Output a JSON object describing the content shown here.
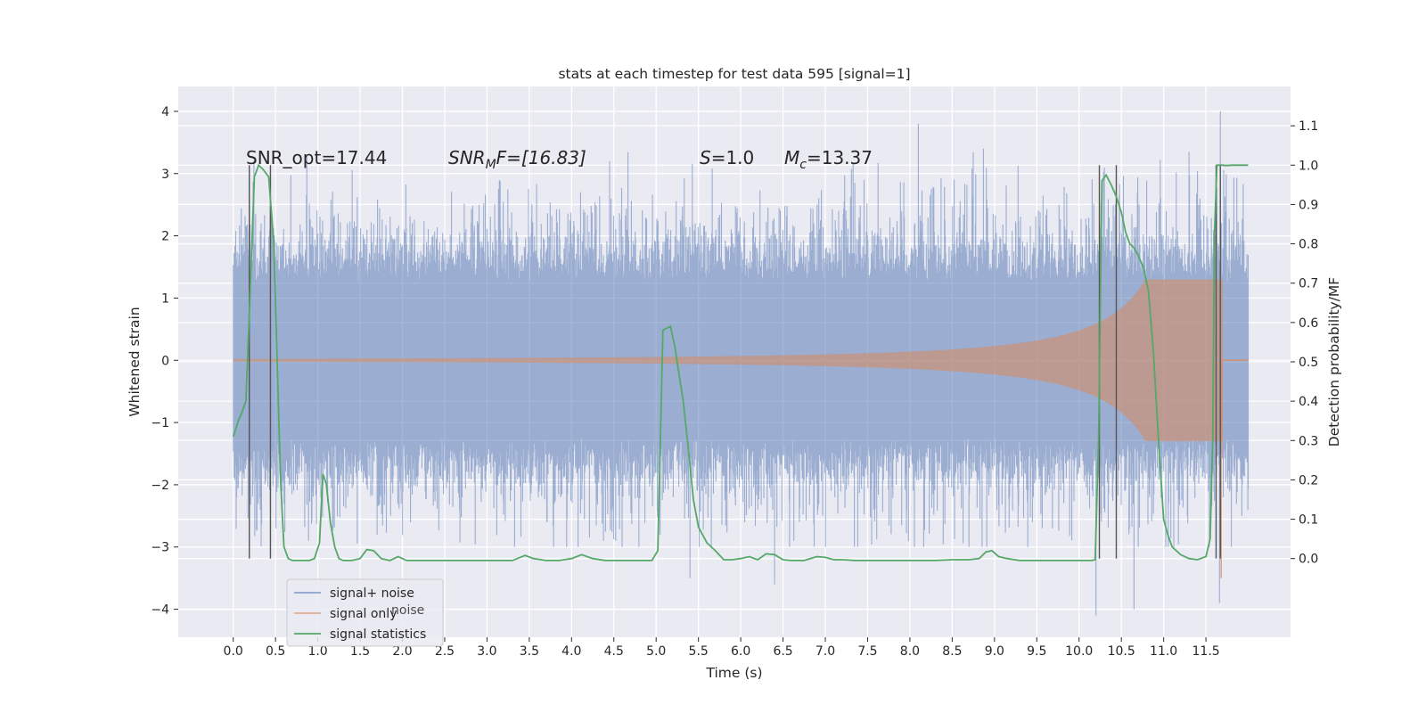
{
  "chart_data": {
    "type": "line",
    "title": "stats at each timestep for test data 595 [signal=1]",
    "xlabel": "Time (s)",
    "ylabel_left": "Whitened strain",
    "ylabel_right": "Detection probability/MF",
    "xlim": [
      -0.65,
      12.5
    ],
    "ylim_left": [
      -4.45,
      4.4
    ],
    "ylim_right": [
      -0.2,
      1.2
    ],
    "x_ticks": [
      0.0,
      0.5,
      1.0,
      1.5,
      2.0,
      2.5,
      3.0,
      3.5,
      4.0,
      4.5,
      5.0,
      5.5,
      6.0,
      6.5,
      7.0,
      7.5,
      8.0,
      8.5,
      9.0,
      9.5,
      10.0,
      10.5,
      11.0,
      11.5
    ],
    "x_tick_labels": [
      "0.0",
      "0.5",
      "1.0",
      "1.5",
      "2.0",
      "2.5",
      "3.0",
      "3.5",
      "4.0",
      "4.5",
      "5.0",
      "5.5",
      "6.0",
      "6.5",
      "7.0",
      "7.5",
      "8.0",
      "8.5",
      "9.0",
      "9.5",
      "10.0",
      "10.5",
      "11.0",
      "11.5"
    ],
    "y_left_ticks": [
      -4,
      -3,
      -2,
      -1,
      0,
      1,
      2,
      3,
      4
    ],
    "y_left_tick_labels": [
      "−4",
      "−3",
      "−2",
      "−1",
      "0",
      "1",
      "2",
      "3",
      "4"
    ],
    "y_right_ticks": [
      0.0,
      0.1,
      0.2,
      0.3,
      0.4,
      0.5,
      0.6,
      0.7,
      0.8,
      0.9,
      1.0,
      1.1
    ],
    "y_right_tick_labels": [
      "0.0",
      "0.1",
      "0.2",
      "0.3",
      "0.4",
      "0.5",
      "0.6",
      "0.7",
      "0.8",
      "0.9",
      "1.0",
      "1.1"
    ],
    "grid": true,
    "annotations": {
      "snr_opt": "SNR_opt=17.44",
      "snr_mf_main": "SNR",
      "snr_mf_sub": "M",
      "snr_mf_rest": "F=[16.83]",
      "s_main": "S",
      "s_rest": "=1.0",
      "mc_main": "M",
      "mc_sub": "c",
      "mc_rest": "=13.37"
    },
    "vertical_lines_x": [
      0.19,
      0.44,
      10.24,
      10.44,
      11.62,
      11.67
    ],
    "series": [
      {
        "name": "signal+ noise",
        "color": "#4c72b0",
        "t_range": [
          0.0,
          12.0
        ],
        "envelope_typical": 1.8,
        "extreme_peaks": [
          [
            11.67,
            4.0
          ],
          [
            11.66,
            -3.9
          ],
          [
            10.65,
            -4.0
          ],
          [
            10.2,
            -4.1
          ],
          [
            8.1,
            3.8
          ],
          [
            4.45,
            3.2
          ],
          [
            6.4,
            -3.6
          ],
          [
            5.4,
            -3.5
          ]
        ]
      },
      {
        "name": "signal only",
        "color": "#dd8452",
        "t_range": [
          0.0,
          12.0
        ],
        "merger_time": 11.7,
        "peak_amplitude": 1.3,
        "ringdown_dip": -3.5
      },
      {
        "name": "signal statistics",
        "color": "#55a868",
        "axis": "right",
        "x": [
          0.0,
          0.06,
          0.1,
          0.15,
          0.2,
          0.25,
          0.3,
          0.35,
          0.42,
          0.48,
          0.52,
          0.56,
          0.6,
          0.65,
          0.7,
          0.8,
          0.9,
          0.96,
          1.02,
          1.06,
          1.1,
          1.15,
          1.2,
          1.25,
          1.3,
          1.4,
          1.5,
          1.58,
          1.66,
          1.75,
          1.85,
          1.95,
          2.05,
          2.15,
          2.3,
          2.5,
          2.7,
          2.9,
          3.1,
          3.3,
          3.45,
          3.55,
          3.7,
          3.85,
          4.0,
          4.12,
          4.25,
          4.4,
          4.6,
          4.8,
          4.95,
          5.02,
          5.08,
          5.12,
          5.17,
          5.22,
          5.27,
          5.32,
          5.38,
          5.44,
          5.5,
          5.55,
          5.6,
          5.7,
          5.8,
          5.9,
          6.0,
          6.1,
          6.2,
          6.3,
          6.4,
          6.5,
          6.6,
          6.75,
          6.9,
          7.0,
          7.1,
          7.2,
          7.35,
          7.5,
          7.7,
          7.9,
          8.1,
          8.3,
          8.5,
          8.7,
          8.82,
          8.9,
          8.97,
          9.05,
          9.15,
          9.3,
          9.5,
          9.7,
          9.9,
          10.05,
          10.15,
          10.19,
          10.23,
          10.27,
          10.32,
          10.38,
          10.44,
          10.5,
          10.55,
          10.6,
          10.65,
          10.7,
          10.76,
          10.82,
          10.88,
          10.94,
          11.0,
          11.05,
          11.1,
          11.15,
          11.2,
          11.3,
          11.4,
          11.5,
          11.55,
          11.58,
          11.6,
          11.63,
          11.66,
          11.7,
          11.73,
          11.76,
          11.8,
          11.9,
          12.0
        ],
        "y": [
          0.31,
          0.35,
          0.37,
          0.4,
          0.68,
          0.97,
          1.0,
          0.99,
          0.97,
          0.8,
          0.5,
          0.2,
          0.03,
          0.0,
          -0.005,
          -0.005,
          -0.005,
          0.0,
          0.04,
          0.215,
          0.19,
          0.09,
          0.03,
          0.0,
          -0.005,
          -0.005,
          0.0,
          0.023,
          0.02,
          0.0,
          -0.005,
          0.005,
          -0.005,
          -0.005,
          -0.005,
          -0.005,
          -0.005,
          -0.005,
          -0.005,
          -0.005,
          0.008,
          0.0,
          -0.005,
          -0.005,
          0.0,
          0.01,
          0.0,
          -0.005,
          -0.005,
          -0.005,
          -0.005,
          0.02,
          0.58,
          0.585,
          0.59,
          0.54,
          0.47,
          0.4,
          0.28,
          0.15,
          0.08,
          0.06,
          0.04,
          0.02,
          -0.003,
          -0.003,
          0.0,
          0.005,
          -0.003,
          0.012,
          0.01,
          -0.003,
          -0.005,
          -0.005,
          0.005,
          0.003,
          -0.003,
          -0.003,
          -0.005,
          -0.005,
          -0.005,
          -0.005,
          -0.005,
          -0.005,
          -0.003,
          -0.003,
          0.0,
          0.017,
          0.02,
          0.005,
          0.0,
          -0.005,
          -0.005,
          -0.005,
          -0.005,
          -0.005,
          -0.005,
          -0.003,
          0.3,
          0.96,
          0.975,
          0.95,
          0.92,
          0.88,
          0.83,
          0.8,
          0.79,
          0.77,
          0.74,
          0.68,
          0.52,
          0.3,
          0.1,
          0.06,
          0.03,
          0.02,
          0.01,
          0.0,
          -0.003,
          0.005,
          0.05,
          0.3,
          0.82,
          1.0,
          1.0,
          1.0,
          0.999,
          0.999,
          1.0,
          1.0,
          1.0
        ]
      }
    ],
    "legend_position": "lower-left",
    "legend_entries": [
      "signal+ noise",
      "signal only",
      "signal statistics"
    ],
    "legend_overlap_text": "noise"
  }
}
